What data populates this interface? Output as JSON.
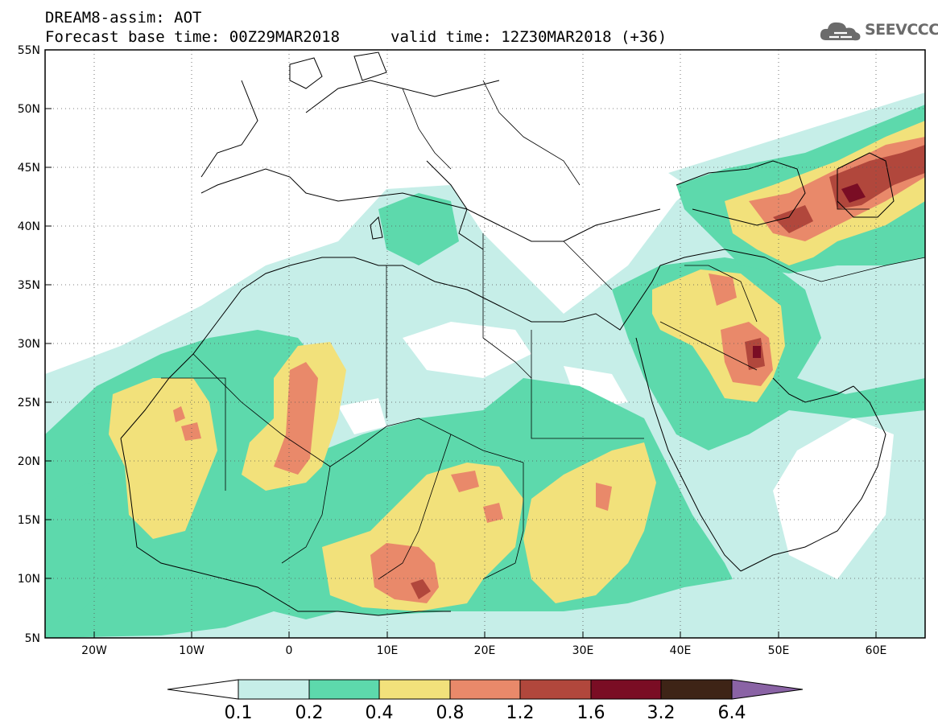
{
  "header": {
    "line1": "DREAM8-assim: AOT",
    "line2": "Forecast base time: 00Z29MAR2018",
    "valid_time": "valid time: 12Z30MAR2018 (+36)"
  },
  "logo": {
    "text": "SEEVCCC",
    "icon": "cloud-icon"
  },
  "map": {
    "lat_labels": [
      "55N",
      "50N",
      "45N",
      "40N",
      "35N",
      "30N",
      "25N",
      "20N",
      "15N",
      "10N",
      "5N"
    ],
    "lon_labels": [
      "20W",
      "10W",
      "0",
      "10E",
      "20E",
      "30E",
      "40E",
      "50E",
      "60E"
    ],
    "extent": {
      "lon_min": -25,
      "lon_max": 65,
      "lat_min": 5,
      "lat_max": 55
    },
    "grid": "dotted"
  },
  "colorbar": {
    "levels": [
      "0.1",
      "0.2",
      "0.4",
      "0.8",
      "1.2",
      "1.6",
      "3.2",
      "6.4"
    ],
    "colors": [
      "#c6eee8",
      "#5dd9ac",
      "#f2e17b",
      "#e9896a",
      "#b1473c",
      "#7a0d24",
      "#3e2416"
    ],
    "extend_low_color": "#ffffff",
    "extend_high_color": "#8a63a5"
  },
  "colors": {
    "c01": "#c6eee8",
    "c02": "#5dd9ac",
    "c04": "#f2e17b",
    "c08": "#e9896a",
    "c12": "#b1473c",
    "c16": "#7a0d24"
  }
}
